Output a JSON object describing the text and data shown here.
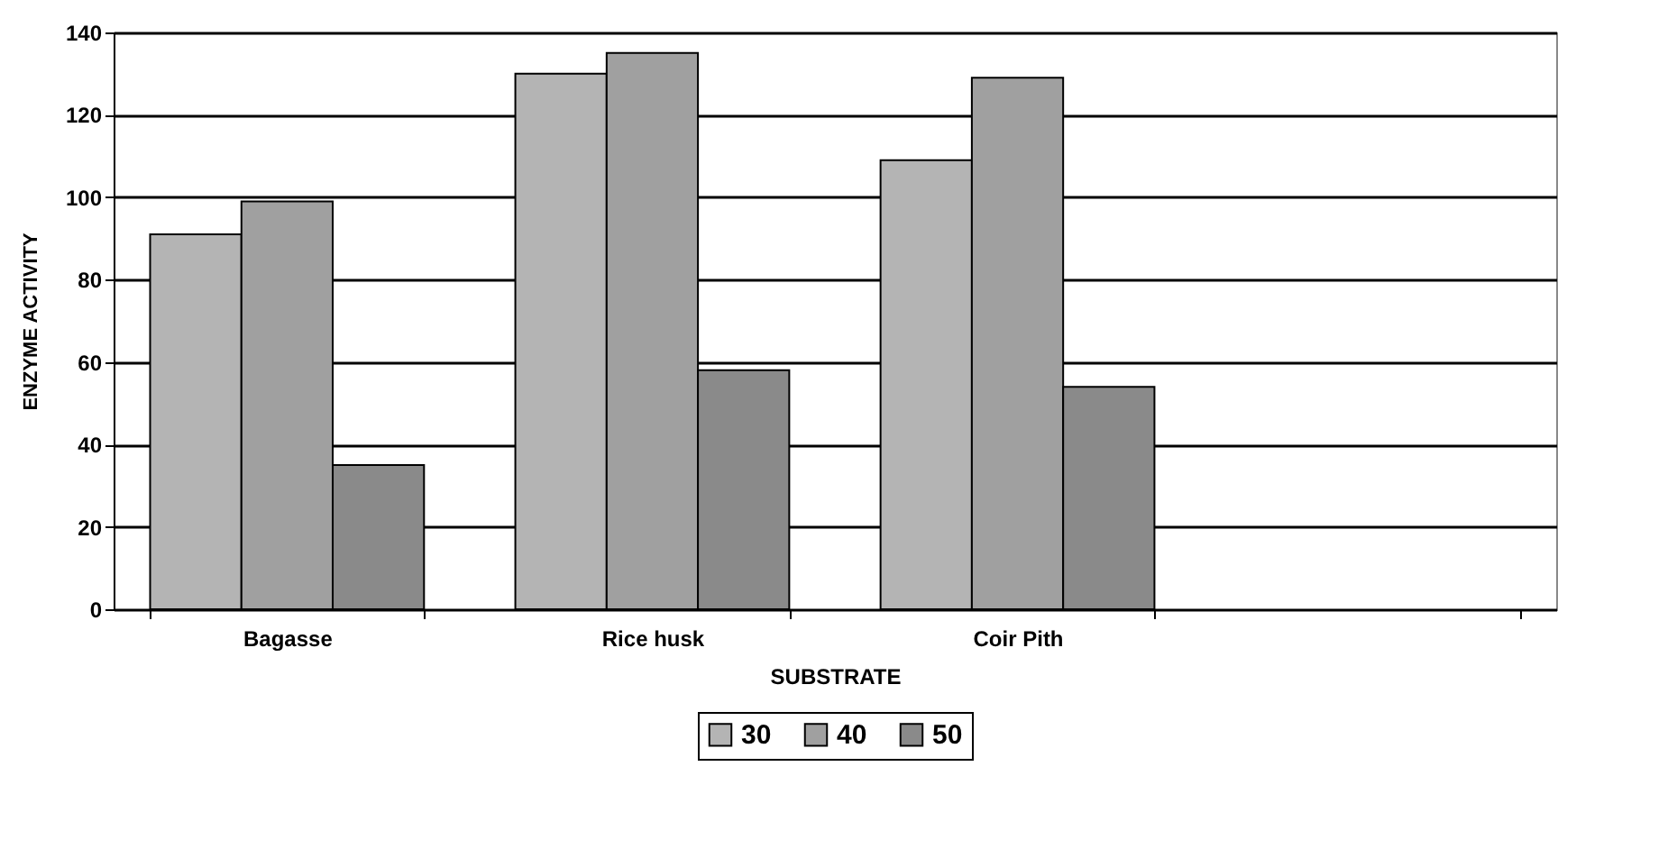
{
  "chart_data": {
    "type": "bar",
    "xlabel": "SUBSTRATE",
    "ylabel": "ENZYME ACTIVITY",
    "categories": [
      "Bagasse",
      "Rice husk",
      "Coir Pith",
      null
    ],
    "series": [
      {
        "name": "30",
        "color": "#b4b4b4",
        "values": [
          91,
          130,
          109,
          null
        ]
      },
      {
        "name": "40",
        "color": "#a0a0a0",
        "values": [
          99,
          135,
          129,
          null
        ]
      },
      {
        "name": "50",
        "color": "#8a8a8a",
        "values": [
          35,
          58,
          54,
          null
        ]
      }
    ],
    "ylim": [
      0,
      140
    ],
    "yticks": [
      0,
      20,
      40,
      60,
      80,
      100,
      120,
      140
    ],
    "grid": "y",
    "legend": "bottom"
  }
}
